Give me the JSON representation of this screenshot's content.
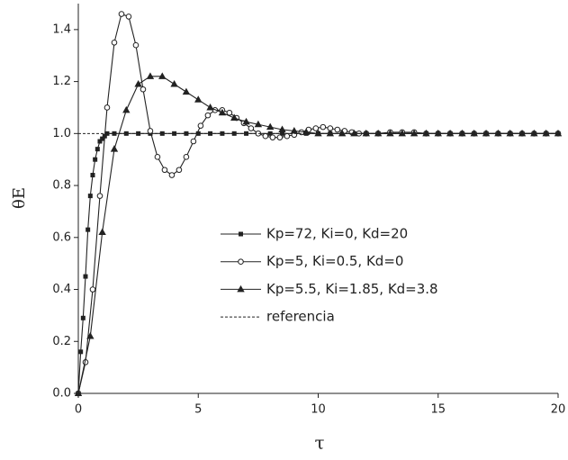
{
  "chart_data": {
    "type": "line",
    "xlabel": "τ",
    "ylabel": "θE",
    "xlim": [
      0,
      20
    ],
    "ylim": [
      0,
      1.5
    ],
    "xticks": [
      0,
      5,
      10,
      15,
      20
    ],
    "yticks": [
      {
        "value": 0,
        "label": "0.0"
      },
      0.2,
      0.4,
      0.6,
      0.8,
      {
        "value": 1,
        "label": "1.0"
      },
      1.2,
      1.4
    ],
    "series": [
      {
        "name": "Kp=72, Ki=0, Kd=20",
        "color": "#222222",
        "marker": "square",
        "dashed": false,
        "x": [
          0,
          0.1,
          0.2,
          0.3,
          0.4,
          0.5,
          0.6,
          0.7,
          0.8,
          0.9,
          1.0,
          1.1,
          1.2,
          1.5,
          2,
          2.5,
          3,
          3.5,
          4,
          4.5,
          5,
          5.5,
          6,
          6.5,
          7,
          7.5,
          8,
          8.5,
          9,
          9.5,
          10,
          10.5,
          11,
          11.5,
          12,
          12.5,
          13,
          13.5,
          14,
          14.5,
          15,
          15.5,
          16,
          16.5,
          17,
          17.5,
          18,
          18.5,
          19,
          19.5,
          20
        ],
        "values": [
          0,
          0.16,
          0.29,
          0.45,
          0.63,
          0.76,
          0.84,
          0.9,
          0.94,
          0.97,
          0.98,
          0.99,
          1,
          1,
          1,
          1,
          1,
          1,
          1,
          1,
          1,
          1,
          1,
          1,
          1,
          1,
          1,
          1,
          1,
          1,
          1,
          1,
          1,
          1,
          1,
          1,
          1,
          1,
          1,
          1,
          1,
          1,
          1,
          1,
          1,
          1,
          1,
          1,
          1,
          1,
          1
        ]
      },
      {
        "name": "Kp=5, Ki=0.5, Kd=0",
        "color": "#222222",
        "marker": "circle",
        "dashed": false,
        "x": [
          0,
          0.3,
          0.6,
          0.9,
          1.2,
          1.5,
          1.8,
          2.1,
          2.4,
          2.7,
          3.0,
          3.3,
          3.6,
          3.9,
          4.2,
          4.5,
          4.8,
          5.1,
          5.4,
          5.7,
          6.0,
          6.3,
          6.6,
          6.9,
          7.2,
          7.5,
          7.8,
          8.1,
          8.4,
          8.7,
          9.0,
          9.3,
          9.6,
          9.9,
          10.2,
          10.5,
          10.8,
          11.1,
          11.4,
          11.7,
          12.0,
          12.5,
          13,
          13.5,
          14,
          14.5,
          15,
          15.5,
          16,
          16.5,
          17,
          17.5,
          18,
          18.5,
          19,
          19.5,
          20
        ],
        "values": [
          0,
          0.12,
          0.4,
          0.76,
          1.1,
          1.35,
          1.46,
          1.45,
          1.34,
          1.17,
          1.01,
          0.91,
          0.86,
          0.84,
          0.86,
          0.91,
          0.97,
          1.03,
          1.07,
          1.09,
          1.09,
          1.08,
          1.06,
          1.04,
          1.02,
          1.0,
          0.99,
          0.985,
          0.985,
          0.99,
          0.995,
          1.005,
          1.015,
          1.02,
          1.025,
          1.02,
          1.015,
          1.01,
          1.005,
          1.0,
          1.0,
          1.0,
          1.005,
          1.005,
          1.005,
          1.0,
          1.0,
          1.0,
          1.0,
          1.0,
          1.0,
          1.0,
          1.0,
          1.0,
          1.0,
          1.0,
          1.0
        ]
      },
      {
        "name": "Kp=5.5, Ki=1.85, Kd=3.8",
        "color": "#222222",
        "marker": "triangle",
        "dashed": false,
        "x": [
          0,
          0.5,
          1,
          1.5,
          2,
          2.5,
          3,
          3.5,
          4,
          4.5,
          5,
          5.5,
          6,
          6.5,
          7,
          7.5,
          8,
          8.5,
          9,
          9.5,
          10,
          10.5,
          11,
          11.5,
          12,
          12.5,
          13,
          13.5,
          14,
          14.5,
          15,
          15.5,
          16,
          16.5,
          17,
          17.5,
          18,
          18.5,
          19,
          19.5,
          20
        ],
        "values": [
          0,
          0.22,
          0.62,
          0.94,
          1.09,
          1.19,
          1.22,
          1.22,
          1.19,
          1.16,
          1.13,
          1.1,
          1.08,
          1.06,
          1.045,
          1.035,
          1.025,
          1.015,
          1.01,
          1.005,
          1,
          1,
          1,
          1,
          1,
          1,
          1,
          1,
          1,
          1,
          1,
          1,
          1,
          1,
          1,
          1,
          1,
          1,
          1,
          1,
          1
        ]
      },
      {
        "name": "referencia",
        "color": "#222222",
        "marker": "none",
        "dashed": true,
        "x": [
          0,
          20
        ],
        "values": [
          1,
          1
        ]
      }
    ]
  }
}
